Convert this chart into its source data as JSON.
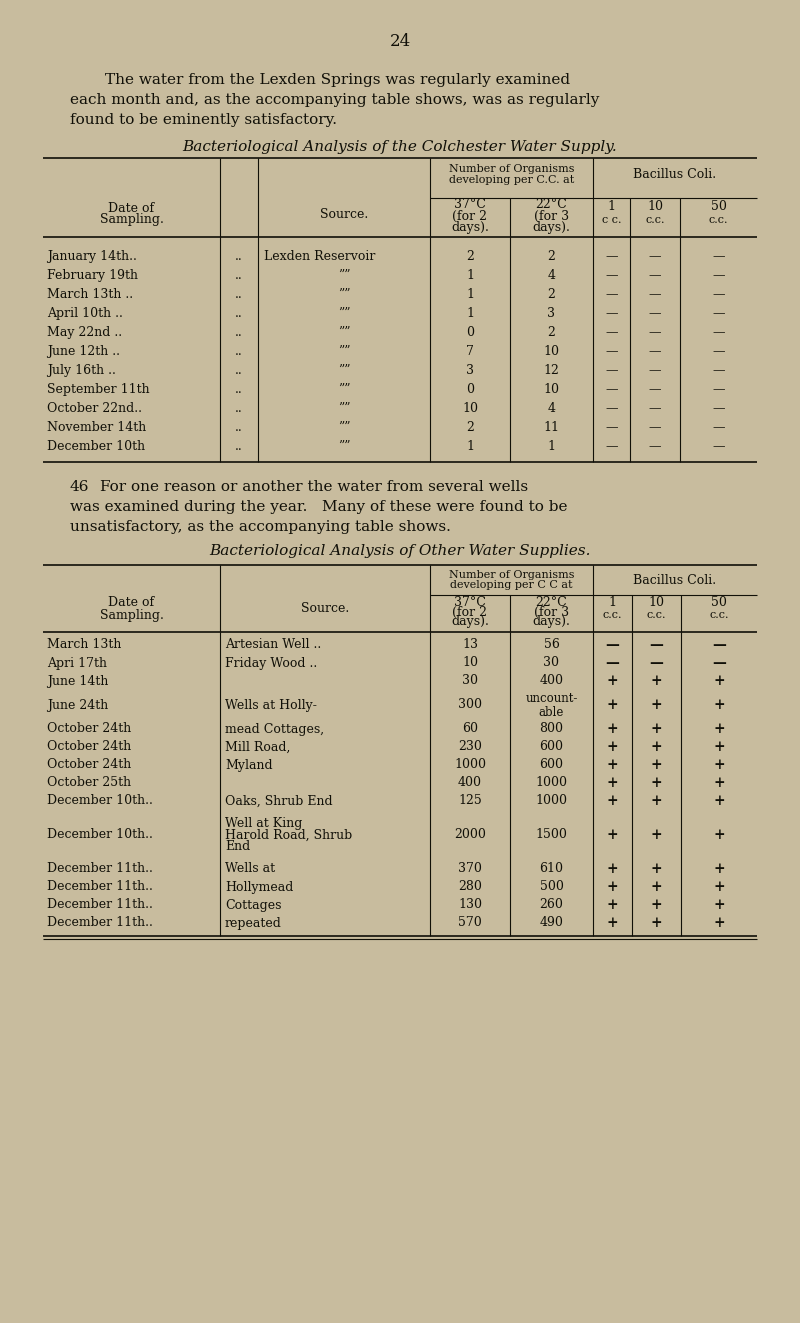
{
  "bg_color": "#c8bc9e",
  "text_color": "#111008",
  "page_number": "24",
  "intro_text": [
    "The water from the Lexden Springs was regularly examined",
    "each month and, as the accompanying table shows, was as regularly",
    "found to be eminently satisfactory."
  ],
  "table1_title": "Bacteriological Analysis of the Colchester Water Supply.",
  "table1_rows": [
    [
      "January 14th..",
      "..",
      "Lexden Reservoir",
      "2",
      "2",
      "—",
      "—",
      "—"
    ],
    [
      "February 19th",
      "..",
      ",,",
      "1",
      "4",
      "—",
      "—",
      "—"
    ],
    [
      "March 13th ..",
      "..",
      ",,",
      "1",
      "2",
      "—",
      "—",
      "—"
    ],
    [
      "April 10th ..",
      "..",
      ",,",
      "1",
      "3",
      "—",
      "—",
      "—"
    ],
    [
      "May 22nd ..",
      "..",
      ",,",
      "0",
      "2",
      "—",
      "—",
      "—"
    ],
    [
      "June 12th ..",
      "..",
      ",,",
      "7",
      "10",
      "—",
      "—",
      "—"
    ],
    [
      "July 16th ..",
      "..",
      ",,",
      "3",
      "12",
      "—",
      "—",
      "—"
    ],
    [
      "September 11th",
      "..",
      ",,",
      "0",
      "10",
      "—",
      "—",
      "—"
    ],
    [
      "October 22nd..",
      "..",
      ",,",
      "10",
      "4",
      "—",
      "—",
      "—"
    ],
    [
      "November 14th",
      "..",
      ",,",
      "2",
      "11",
      "—",
      "—",
      "—"
    ],
    [
      "December 10th",
      "..",
      ",,",
      "1",
      "1",
      "—",
      "—",
      "—"
    ]
  ],
  "middle_text_num": "46",
  "middle_text": "For one reason or another the water from several wells was examined during the year.   Many of these were found to be unsatisfactory, as the accompanying table shows.",
  "table2_title": "Bacteriological Analysis of Other Water Supplies.",
  "table2_rows": [
    [
      "March 13th",
      "..",
      "..",
      "Artesian Well ..",
      "13",
      "56",
      "—",
      "—",
      "—"
    ],
    [
      "Apri 17th",
      "..",
      "..",
      "Friday Wood ..",
      "10",
      "30",
      "—",
      "—",
      "—"
    ],
    [
      "June 14th",
      "..",
      "..",
      "",
      "30",
      "400",
      "+",
      "+",
      "+"
    ],
    [
      "June 24th",
      "..",
      "..",
      "Wells at Holly-",
      "300",
      "uncount-\nable",
      "+",
      "+",
      "+"
    ],
    [
      "October 24th",
      "..",
      "..",
      "mead Cottages,",
      "60",
      "800",
      "+",
      "+",
      "+"
    ],
    [
      "October 24th",
      "..",
      "..",
      "Mill Road,",
      "230",
      "600",
      "+",
      "+",
      "+"
    ],
    [
      "October 24th",
      "..",
      "..",
      "Myland",
      "1000",
      "600",
      "+",
      "+",
      "+"
    ],
    [
      "October 25th",
      "..",
      "..",
      "",
      "400",
      "1000",
      "+",
      "+",
      "+"
    ],
    [
      "December 10th..",
      "..",
      "..",
      "Oaks, Shrub End",
      "125",
      "1000",
      "+",
      "+",
      "+"
    ],
    [
      "December 10th..",
      "..",
      "..",
      "Well at King\nHarold Road, Shrub\nEnd",
      "2000",
      "1500",
      "+",
      "+",
      "+"
    ],
    [
      "December 11th..",
      "..",
      "..",
      "Wells at",
      "370",
      "610",
      "+",
      "+",
      "+"
    ],
    [
      "December 11th..",
      "..",
      "..",
      "Hollymead",
      "280",
      "500",
      "+",
      "+",
      "+"
    ],
    [
      "December 11th..",
      "..",
      "..",
      "Cottages",
      "130",
      "260",
      "+",
      "+",
      "+"
    ],
    [
      "December 11th..",
      "..",
      "..",
      "repeated",
      "570",
      "490",
      "+",
      "+",
      "+"
    ]
  ],
  "row2_heights": [
    18,
    18,
    18,
    30,
    18,
    18,
    18,
    18,
    18,
    50,
    18,
    18,
    18,
    18
  ]
}
